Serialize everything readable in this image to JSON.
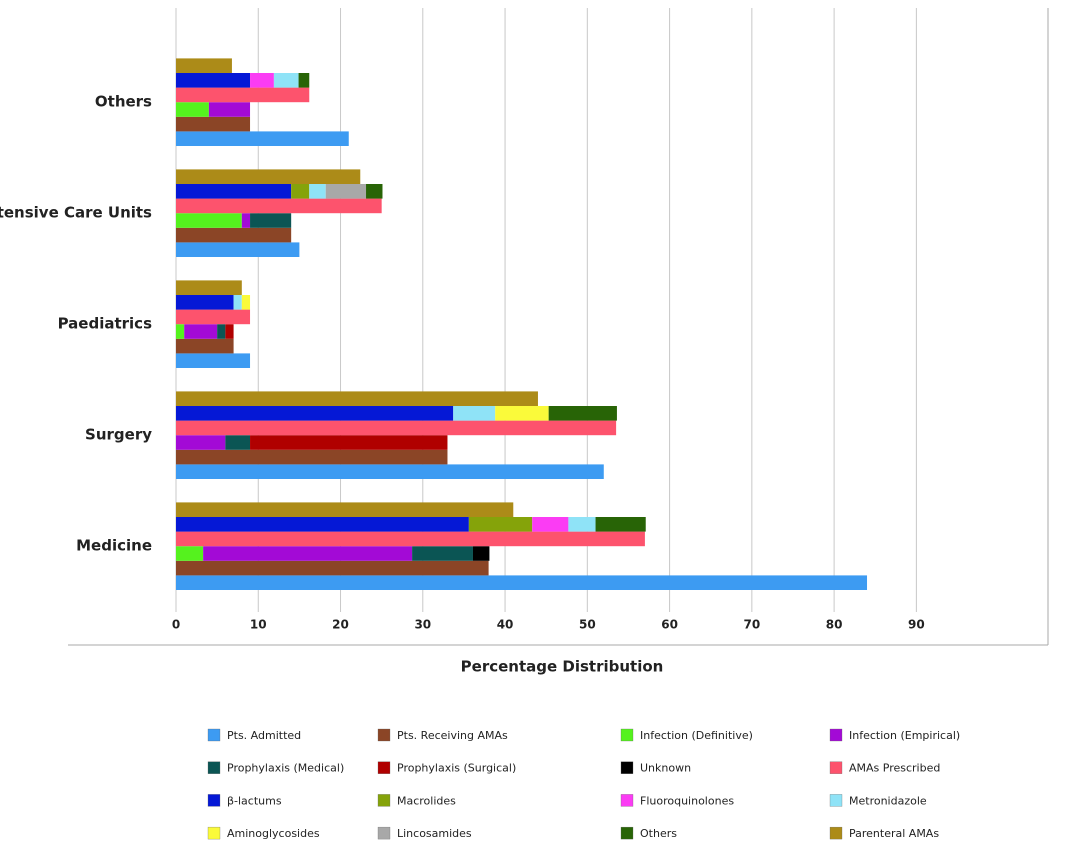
{
  "chart_data": {
    "type": "grouped-stacked-bar",
    "orientation": "horizontal",
    "x_label": "Percentage Distribution",
    "categories": [
      "Medicine",
      "Surgery",
      "Paediatrics",
      "Intensive Care Units",
      "Others"
    ],
    "xlim": [
      0,
      106
    ],
    "xticks": [
      0,
      10,
      20,
      30,
      40,
      50,
      60,
      70,
      80,
      90
    ],
    "grid": true,
    "series": [
      [
        {
          "name": "Pts. Admitted",
          "color": "#3d9bf2",
          "values": [
            84,
            52,
            9,
            15,
            21
          ]
        }
      ],
      [
        {
          "name": "Pts. Receiving AMAs",
          "color": "#8b4526",
          "values": [
            38,
            33,
            7,
            14,
            9
          ]
        }
      ],
      [
        {
          "name": "Infection (Definitive)",
          "color": "#55f21e",
          "values": [
            3.3,
            0,
            1,
            8,
            4
          ]
        },
        {
          "name": "Infection (Empirical)",
          "color": "#a30ad6",
          "values": [
            25.4,
            6,
            4,
            1,
            5
          ]
        },
        {
          "name": "Prophylaxis (Medical)",
          "color": "#0b5554",
          "values": [
            7.4,
            3,
            1,
            5,
            0
          ]
        },
        {
          "name": "Prophylaxis (Surgical)",
          "color": "#b00000",
          "values": [
            0,
            24,
            1,
            0,
            0
          ]
        },
        {
          "name": "Unknown",
          "color": "#000000",
          "values": [
            2,
            0,
            0,
            0,
            0
          ]
        }
      ],
      [
        {
          "name": "AMAs Prescribed",
          "color": "#fd536d",
          "values": [
            57,
            53.5,
            9,
            25,
            16.2
          ]
        }
      ],
      [
        {
          "name": "β-lactums",
          "color": "#0518d6",
          "values": [
            35.6,
            33.7,
            7,
            14,
            9
          ]
        },
        {
          "name": "Macrolides",
          "color": "#85a30a",
          "values": [
            7.7,
            0,
            0,
            2.2,
            0
          ]
        },
        {
          "name": "Fluoroquinolones",
          "color": "#fb3cf4",
          "values": [
            4.4,
            0,
            0,
            0,
            2.9
          ]
        },
        {
          "name": "Metronidazole",
          "color": "#8fe3f7",
          "values": [
            3.3,
            5.1,
            1,
            2,
            3
          ]
        },
        {
          "name": "Aminoglycosides",
          "color": "#fafa3a",
          "values": [
            0,
            6.5,
            1,
            0,
            0
          ]
        },
        {
          "name": "Lincosamides",
          "color": "#a8a8a8",
          "values": [
            0,
            0,
            0,
            4.9,
            0
          ]
        },
        {
          "name": "Others",
          "color": "#286406",
          "values": [
            6.1,
            8.3,
            0,
            2,
            1.3
          ]
        }
      ],
      [
        {
          "name": "Parenteral  AMAs",
          "color": "#ac8b18",
          "values": [
            41,
            44,
            8,
            22.4,
            6.8
          ]
        }
      ]
    ]
  }
}
